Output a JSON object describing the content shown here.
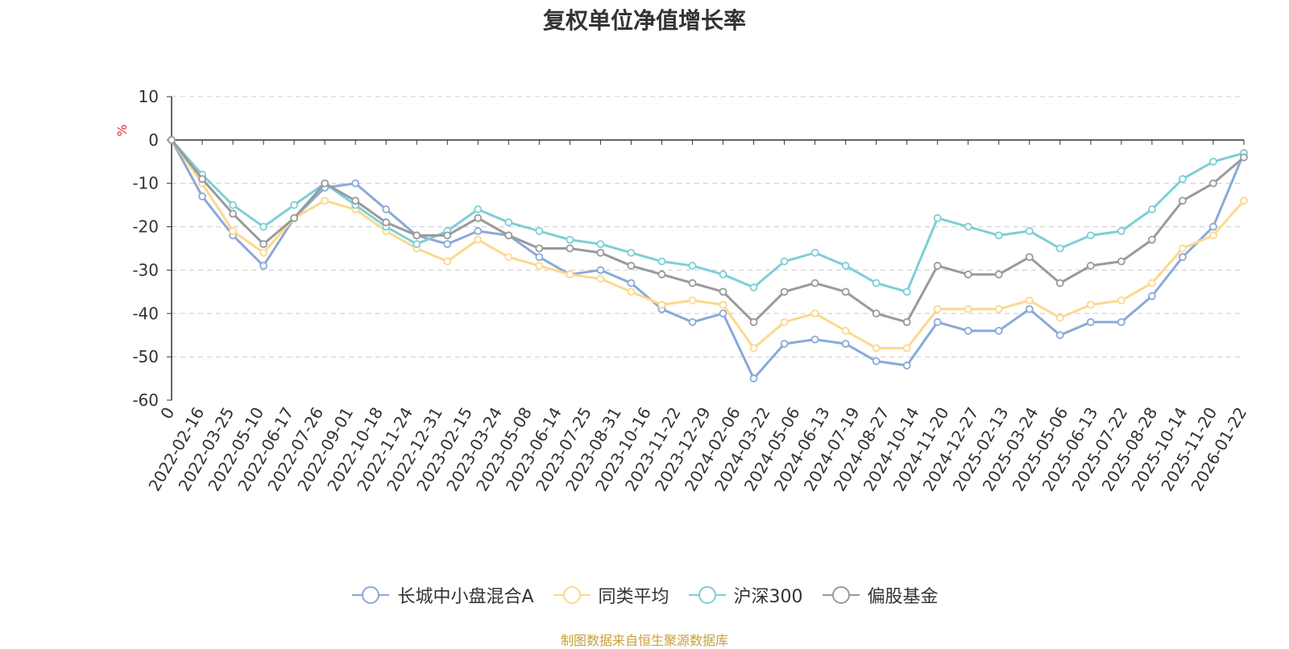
{
  "chart_data": {
    "type": "line",
    "title": "复权单位净值增长率",
    "ylabel": "%",
    "ylim": [
      -60,
      10
    ],
    "yticks": [
      10,
      0,
      -10,
      -20,
      -30,
      -40,
      -50,
      -60
    ],
    "x_origin_label": "0",
    "categories": [
      "2022-02-16",
      "2022-03-25",
      "2022-05-10",
      "2022-06-17",
      "2022-07-26",
      "2022-09-01",
      "2022-10-18",
      "2022-11-24",
      "2022-12-31",
      "2023-02-15",
      "2023-03-24",
      "2023-05-08",
      "2023-06-14",
      "2023-07-25",
      "2023-08-31",
      "2023-10-16",
      "2023-11-22",
      "2023-12-29",
      "2024-02-06",
      "2024-03-22",
      "2024-05-06",
      "2024-06-13",
      "2024-07-19",
      "2024-08-27",
      "2024-10-14",
      "2024-11-20",
      "2024-12-27",
      "2025-02-13",
      "2025-03-24",
      "2025-05-06",
      "2025-06-13",
      "2025-07-22",
      "2025-08-28",
      "2025-10-14",
      "2025-11-20",
      "2026-01-22"
    ],
    "series": [
      {
        "name": "长城中小盘混合A",
        "color": "#8aa9d8",
        "values": [
          0,
          -13,
          -22,
          -29,
          -18,
          -11,
          -10,
          -16,
          -22,
          -24,
          -21,
          -22,
          -27,
          -31,
          -30,
          -33,
          -39,
          -42,
          -40,
          -55,
          -47,
          -46,
          -47,
          -51,
          -52,
          -42,
          -44,
          -44,
          -39,
          -45,
          -42,
          -42,
          -36,
          -27,
          -20,
          -3
        ]
      },
      {
        "name": "同类平均",
        "color": "#fcd88e",
        "values": [
          0,
          -10,
          -21,
          -26,
          -18,
          -14,
          -16,
          -21,
          -25,
          -28,
          -23,
          -27,
          -29,
          -31,
          -32,
          -35,
          -38,
          -37,
          -38,
          -48,
          -42,
          -40,
          -44,
          -48,
          -48,
          -39,
          -39,
          -39,
          -37,
          -41,
          -38,
          -37,
          -33,
          -25,
          -22,
          -14
        ]
      },
      {
        "name": "沪深300",
        "color": "#7dcfd6",
        "values": [
          0,
          -8,
          -15,
          -20,
          -15,
          -10,
          -15,
          -20,
          -24,
          -21,
          -16,
          -19,
          -21,
          -23,
          -24,
          -26,
          -28,
          -29,
          -31,
          -34,
          -28,
          -26,
          -29,
          -33,
          -35,
          -18,
          -20,
          -22,
          -21,
          -25,
          -22,
          -21,
          -16,
          -9,
          -5,
          -3
        ]
      },
      {
        "name": "偏股基金",
        "color": "#9a9a9a",
        "values": [
          0,
          -9,
          -17,
          -24,
          -18,
          -10,
          -14,
          -19,
          -22,
          -22,
          -18,
          -22,
          -25,
          -25,
          -26,
          -29,
          -31,
          -33,
          -35,
          -42,
          -35,
          -33,
          -35,
          -40,
          -42,
          -29,
          -31,
          -31,
          -27,
          -33,
          -29,
          -28,
          -23,
          -14,
          -10,
          -4
        ]
      }
    ]
  },
  "source": "制图数据来自恒生聚源数据库"
}
